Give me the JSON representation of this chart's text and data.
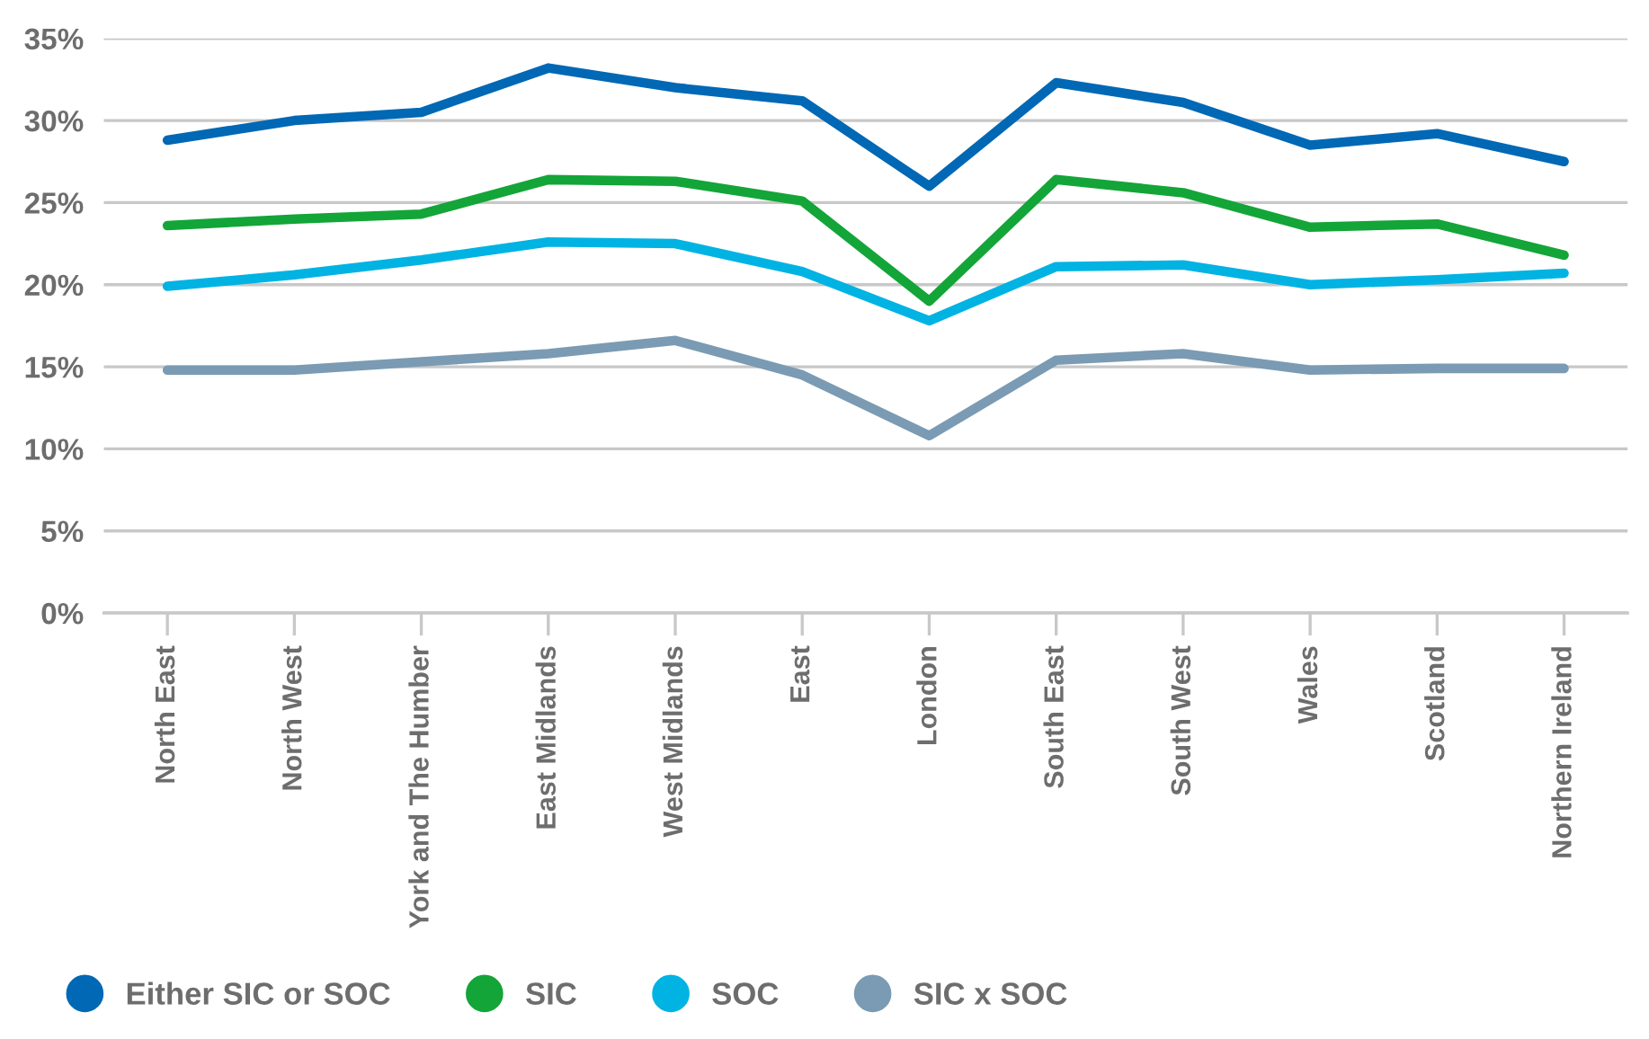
{
  "chart_data": {
    "type": "line",
    "categories": [
      "North East",
      "North West",
      "York and The Humber",
      "East Midlands",
      "West Midlands",
      "East",
      "London",
      "South East",
      "South West",
      "Wales",
      "Scotland",
      "Northern Ireland"
    ],
    "series": [
      {
        "name": "Either SIC or SOC",
        "color": "#0068b4",
        "values": [
          28.8,
          30.0,
          30.5,
          33.2,
          32.0,
          31.2,
          26.0,
          32.3,
          31.1,
          28.5,
          29.2,
          27.5
        ]
      },
      {
        "name": "SIC",
        "color": "#13a538",
        "values": [
          23.6,
          24.0,
          24.3,
          26.4,
          26.3,
          25.1,
          19.0,
          26.4,
          25.6,
          23.5,
          23.7,
          21.8
        ]
      },
      {
        "name": "SOC",
        "color": "#00b3e3",
        "values": [
          19.9,
          20.6,
          21.5,
          22.6,
          22.5,
          20.8,
          17.8,
          21.1,
          21.2,
          20.0,
          20.3,
          20.7
        ]
      },
      {
        "name": "SIC x SOC",
        "color": "#7a9bb3",
        "values": [
          14.8,
          14.8,
          15.3,
          15.8,
          16.6,
          14.5,
          10.8,
          15.4,
          15.8,
          14.8,
          14.9,
          14.9
        ]
      }
    ],
    "ylim": [
      0,
      35
    ],
    "yticks": [
      {
        "value": 0,
        "label": "0%"
      },
      {
        "value": 5,
        "label": "5%"
      },
      {
        "value": 10,
        "label": "10%"
      },
      {
        "value": 15,
        "label": "15%"
      },
      {
        "value": 20,
        "label": "20%"
      },
      {
        "value": 25,
        "label": "25%"
      },
      {
        "value": 30,
        "label": "30%"
      },
      {
        "value": 35,
        "label": "35%"
      }
    ],
    "grid": "y",
    "legend": "bottom",
    "marker": "none",
    "line_style": "solid"
  }
}
